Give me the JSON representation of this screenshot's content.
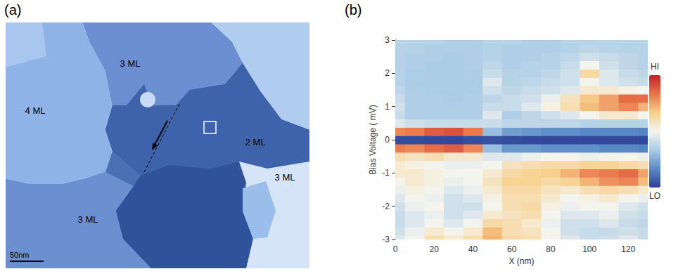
{
  "panel_a": {
    "panel_label": "(a)",
    "terraces": [
      "3 ML",
      "4 ML",
      "2 ML",
      "3 ML",
      "3 ML"
    ],
    "scale_bar": "50nm"
  },
  "chart_data": {
    "type": "heatmap",
    "panel_label": "(b)",
    "xlabel": "X (nm)",
    "ylabel": "Bias Voltage ( mV)",
    "x": [
      0,
      10,
      20,
      30,
      40,
      50,
      60,
      70,
      80,
      90,
      100,
      110,
      120,
      130
    ],
    "y": [
      -3,
      -2.75,
      -2.5,
      -2.25,
      -2,
      -1.75,
      -1.5,
      -1.25,
      -1,
      -0.75,
      -0.5,
      -0.25,
      0,
      0.25,
      0.5,
      0.75,
      1,
      1.25,
      1.5,
      1.75,
      2,
      2.25,
      2.5,
      2.75,
      3
    ],
    "z": [
      [
        0.45,
        0.5,
        0.6,
        0.55,
        0.6,
        0.72,
        0.62,
        0.6,
        0.5,
        0.45,
        0.4,
        0.42,
        0.45,
        0.4
      ],
      [
        0.42,
        0.48,
        0.55,
        0.5,
        0.55,
        0.7,
        0.6,
        0.58,
        0.5,
        0.42,
        0.4,
        0.4,
        0.42,
        0.4
      ],
      [
        0.4,
        0.45,
        0.5,
        0.45,
        0.5,
        0.62,
        0.6,
        0.55,
        0.48,
        0.42,
        0.42,
        0.45,
        0.4,
        0.38
      ],
      [
        0.4,
        0.45,
        0.48,
        0.42,
        0.45,
        0.55,
        0.58,
        0.6,
        0.5,
        0.45,
        0.45,
        0.48,
        0.42,
        0.4
      ],
      [
        0.42,
        0.48,
        0.5,
        0.42,
        0.42,
        0.5,
        0.6,
        0.62,
        0.52,
        0.48,
        0.5,
        0.5,
        0.45,
        0.42
      ],
      [
        0.45,
        0.5,
        0.48,
        0.42,
        0.45,
        0.52,
        0.6,
        0.6,
        0.55,
        0.5,
        0.52,
        0.55,
        0.5,
        0.48
      ],
      [
        0.48,
        0.52,
        0.5,
        0.45,
        0.48,
        0.55,
        0.62,
        0.62,
        0.58,
        0.55,
        0.6,
        0.62,
        0.6,
        0.55
      ],
      [
        0.5,
        0.55,
        0.52,
        0.48,
        0.5,
        0.58,
        0.65,
        0.65,
        0.62,
        0.65,
        0.72,
        0.78,
        0.8,
        0.7
      ],
      [
        0.55,
        0.55,
        0.52,
        0.5,
        0.5,
        0.55,
        0.62,
        0.65,
        0.66,
        0.72,
        0.8,
        0.82,
        0.85,
        0.75
      ],
      [
        0.55,
        0.52,
        0.5,
        0.48,
        0.48,
        0.5,
        0.58,
        0.6,
        0.62,
        0.62,
        0.65,
        0.65,
        0.62,
        0.6
      ],
      [
        0.6,
        0.58,
        0.6,
        0.55,
        0.55,
        0.45,
        0.45,
        0.48,
        0.5,
        0.5,
        0.48,
        0.5,
        0.5,
        0.48
      ],
      [
        0.82,
        0.8,
        0.85,
        0.88,
        0.8,
        0.3,
        0.2,
        0.2,
        0.18,
        0.18,
        0.18,
        0.16,
        0.16,
        0.15
      ],
      [
        0.03,
        0.03,
        0.02,
        0.02,
        0.03,
        0.04,
        0.03,
        0.02,
        0.02,
        0.02,
        0.02,
        0.02,
        0.02,
        0.02
      ],
      [
        0.8,
        0.82,
        0.88,
        0.9,
        0.82,
        0.3,
        0.22,
        0.2,
        0.18,
        0.18,
        0.16,
        0.16,
        0.16,
        0.15
      ],
      [
        0.45,
        0.42,
        0.4,
        0.4,
        0.4,
        0.4,
        0.38,
        0.38,
        0.38,
        0.38,
        0.36,
        0.36,
        0.36,
        0.36
      ],
      [
        0.4,
        0.35,
        0.35,
        0.35,
        0.35,
        0.45,
        0.35,
        0.38,
        0.42,
        0.45,
        0.5,
        0.55,
        0.55,
        0.5
      ],
      [
        0.42,
        0.35,
        0.35,
        0.35,
        0.35,
        0.4,
        0.4,
        0.45,
        0.52,
        0.6,
        0.7,
        0.75,
        0.8,
        0.72
      ],
      [
        0.4,
        0.35,
        0.35,
        0.34,
        0.35,
        0.38,
        0.4,
        0.42,
        0.48,
        0.58,
        0.68,
        0.75,
        0.85,
        0.85
      ],
      [
        0.38,
        0.35,
        0.34,
        0.34,
        0.34,
        0.42,
        0.38,
        0.4,
        0.42,
        0.45,
        0.55,
        0.55,
        0.52,
        0.5
      ],
      [
        0.36,
        0.34,
        0.34,
        0.34,
        0.34,
        0.45,
        0.36,
        0.38,
        0.4,
        0.42,
        0.5,
        0.45,
        0.42,
        0.4
      ],
      [
        0.36,
        0.34,
        0.34,
        0.34,
        0.34,
        0.4,
        0.36,
        0.36,
        0.38,
        0.42,
        0.62,
        0.45,
        0.4,
        0.38
      ],
      [
        0.36,
        0.35,
        0.34,
        0.34,
        0.35,
        0.38,
        0.35,
        0.36,
        0.36,
        0.4,
        0.5,
        0.42,
        0.38,
        0.36
      ],
      [
        0.36,
        0.35,
        0.35,
        0.34,
        0.35,
        0.36,
        0.35,
        0.35,
        0.36,
        0.38,
        0.42,
        0.4,
        0.38,
        0.36
      ],
      [
        0.36,
        0.36,
        0.35,
        0.35,
        0.35,
        0.36,
        0.35,
        0.35,
        0.35,
        0.36,
        0.38,
        0.37,
        0.36,
        0.36
      ],
      [
        0.37,
        0.36,
        0.36,
        0.35,
        0.35,
        0.36,
        0.36,
        0.35,
        0.35,
        0.36,
        0.36,
        0.36,
        0.36,
        0.36
      ]
    ],
    "xlim": [
      0,
      130
    ],
    "xticks": [
      0,
      20,
      40,
      60,
      80,
      100,
      120
    ],
    "ylim": [
      -3,
      3
    ],
    "yticks": [
      -3,
      -2,
      -1,
      0,
      1,
      2,
      3
    ],
    "colorbar": {
      "range": [
        0,
        1
      ],
      "ticks": [
        {
          "value": 0,
          "label": "LO"
        },
        {
          "value": 1,
          "label": "HI"
        }
      ]
    }
  }
}
